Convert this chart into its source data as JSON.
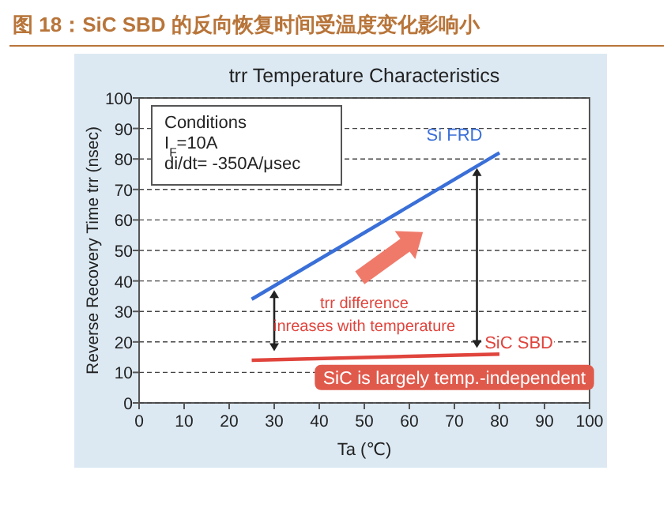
{
  "chart_data": {
    "type": "line",
    "title": "图 18：SiC SBD 的反向恢复时间受温度变化影响小",
    "subtitle": "trr Temperature Characteristics",
    "xlabel": "Ta (℃)",
    "ylabel": "Reverse Recovery Time trr (nsec)",
    "x": [
      25,
      80
    ],
    "series": [
      {
        "name": "Si FRD",
        "color": "#3a6fd8",
        "values": [
          34,
          82
        ]
      },
      {
        "name": "SiC SBD",
        "color": "#e0443c",
        "values": [
          14,
          16
        ]
      }
    ],
    "annotations": [
      "Conditions",
      "I$_{F}$=10A",
      "di/dt= -350A/μsec",
      "trr difference",
      "inreases with temperature",
      "SiC is largely temp.-independent"
    ],
    "xlim": [
      0,
      100
    ],
    "xticks": [
      0,
      10,
      20,
      30,
      40,
      50,
      60,
      70,
      80,
      90,
      100
    ],
    "ylim": [
      0,
      100
    ],
    "yticks": [
      0,
      10,
      20,
      30,
      40,
      50,
      60,
      70,
      80,
      90,
      100
    ],
    "grid": "y",
    "marker": "none",
    "line_style": "solid"
  }
}
